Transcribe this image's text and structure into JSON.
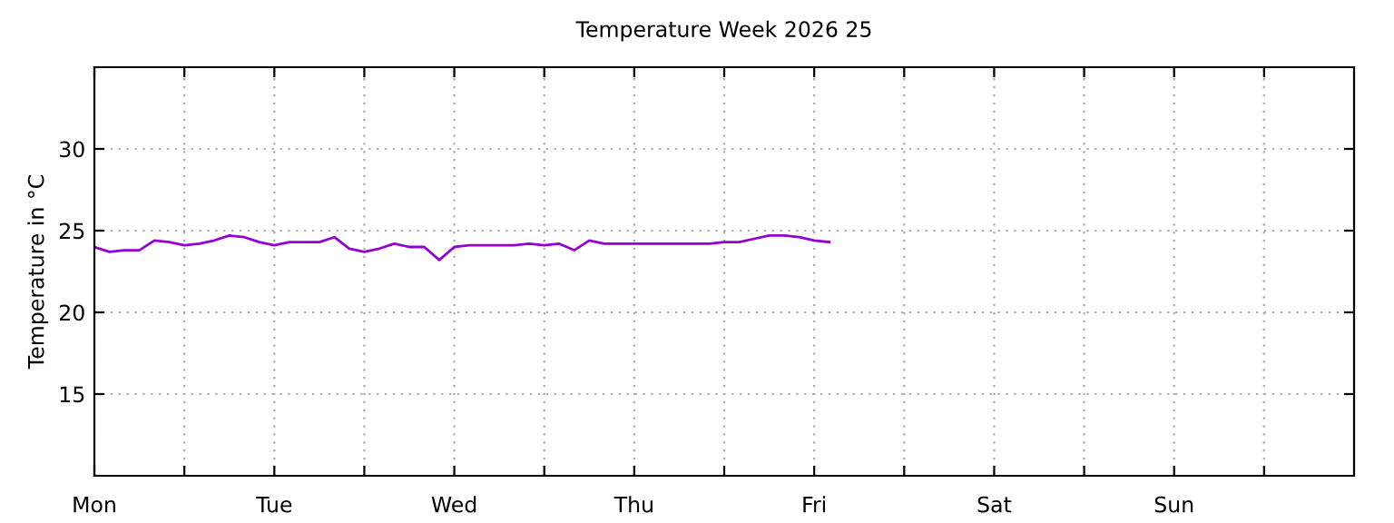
{
  "chart_data": {
    "type": "line",
    "title": "Temperature Week 2026 25",
    "ylabel": "Temperature in °C",
    "categories": [
      "Mon",
      null,
      null,
      null,
      null,
      null,
      null,
      null,
      null,
      null,
      null,
      null,
      "Tue",
      null,
      null,
      null,
      null,
      null,
      null,
      null,
      null,
      null,
      null,
      null,
      "Wed",
      null,
      null,
      null,
      null,
      null,
      null,
      null,
      null,
      null,
      null,
      null,
      "Thu",
      null,
      null,
      null,
      null,
      null,
      null,
      null,
      null,
      null,
      null,
      null,
      "Fri",
      null,
      null,
      null,
      null,
      null,
      null,
      null,
      null,
      null,
      null,
      null,
      "Sat",
      null,
      null,
      null,
      null,
      null,
      null,
      null,
      null,
      null,
      null,
      null,
      "Sun",
      null,
      null,
      null,
      null,
      null,
      null,
      null,
      null,
      null,
      null,
      null
    ],
    "series": [
      {
        "color": "#9400d3",
        "values": [
          24.0,
          23.7,
          23.8,
          23.8,
          24.4,
          24.3,
          24.1,
          24.2,
          24.4,
          24.7,
          24.6,
          24.3,
          24.1,
          24.3,
          24.3,
          24.3,
          24.6,
          23.9,
          23.7,
          23.9,
          24.2,
          24.0,
          24.0,
          23.2,
          24.0,
          24.1,
          24.1,
          24.1,
          24.1,
          24.2,
          24.1,
          24.2,
          23.8,
          24.4,
          24.2,
          24.2,
          24.2,
          24.2,
          24.2,
          24.2,
          24.2,
          24.2,
          24.3,
          24.3,
          24.5,
          24.7,
          24.7,
          24.6,
          24.4,
          24.3,
          null,
          null,
          null,
          null,
          null,
          null,
          null,
          null,
          null,
          null,
          null,
          null,
          null,
          null,
          null,
          null,
          null,
          null,
          null,
          null,
          null,
          null,
          null,
          null,
          null,
          null,
          null,
          null,
          null,
          null,
          null,
          null,
          null,
          null
        ]
      }
    ],
    "ylim": [
      10,
      35
    ],
    "yticks": [
      15,
      20,
      25,
      30
    ],
    "grid": true,
    "legend": false,
    "marker": "none",
    "line_style": "solid"
  }
}
